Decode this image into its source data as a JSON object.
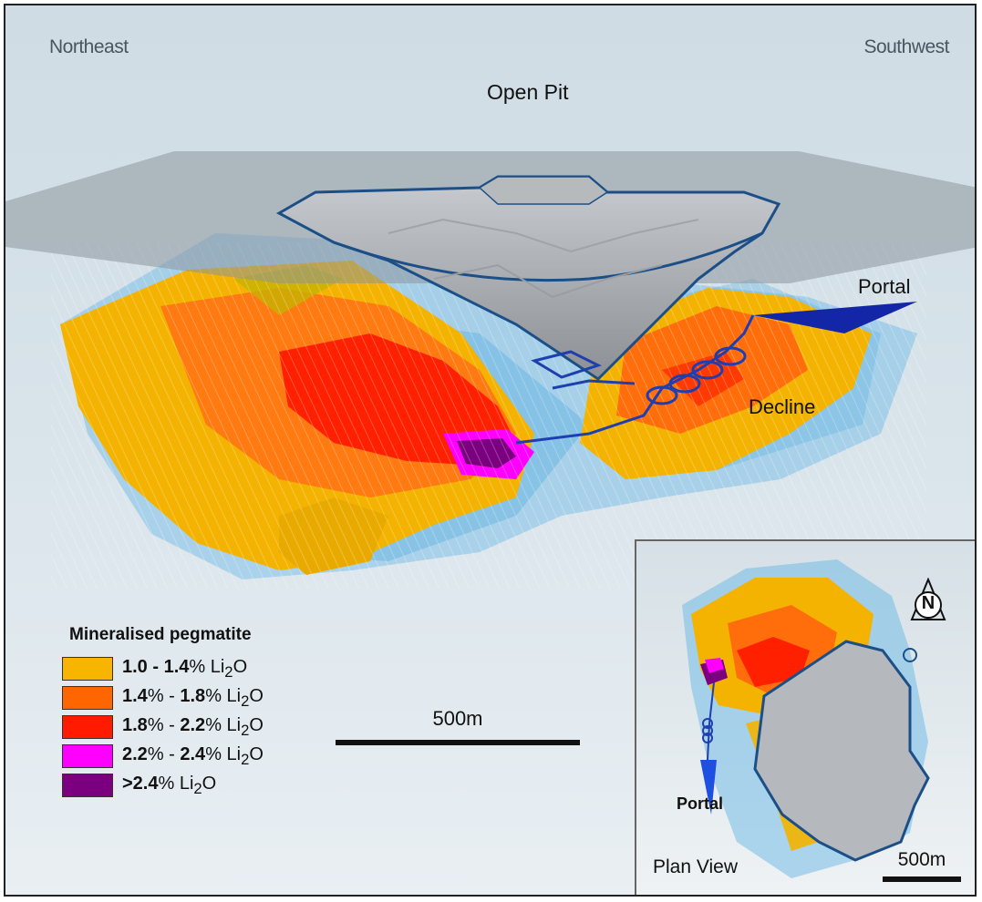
{
  "labels": {
    "northeast": "Northeast",
    "southwest": "Southwest",
    "open_pit": "Open Pit",
    "portal": "Portal",
    "decline": "Decline"
  },
  "legend": {
    "title": "Mineralised pegmatite",
    "items": [
      {
        "bold": "1.0 - 1.4",
        "rest": "% Li",
        "sub": "2",
        "tail": "O",
        "color": "#f7b500"
      },
      {
        "bold": "1.4",
        "rest": "% - ",
        "bold2": "1.8",
        "rest2": "% Li",
        "sub": "2",
        "tail": "O",
        "color": "#ff6600"
      },
      {
        "bold": "1.8",
        "rest": "% - ",
        "bold2": "2.2",
        "rest2": "% Li",
        "sub": "2",
        "tail": "O",
        "color": "#ff1a00"
      },
      {
        "bold": "2.2",
        "rest": "% - ",
        "bold2": "2.4",
        "rest2": "% Li",
        "sub": "2",
        "tail": "O",
        "color": "#ff00ff"
      },
      {
        "bold": ">2.4",
        "rest": "% Li",
        "sub": "2",
        "tail": "O",
        "color": "#7a0080"
      }
    ]
  },
  "scale_main": "500m",
  "inset": {
    "title": "Plan View",
    "portal": "Portal",
    "north": "N",
    "scale": "500m"
  }
}
